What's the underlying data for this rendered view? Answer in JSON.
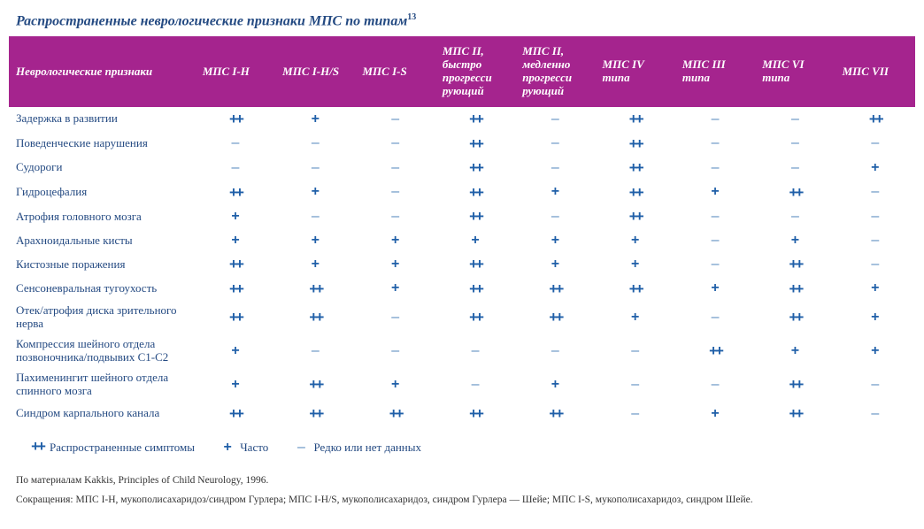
{
  "title": "Распространенные неврологические признаки МПС по типам",
  "title_sup": "13",
  "colors": {
    "header_bg": "#a5248e",
    "header_text": "#ffffff",
    "body_text": "#244a82",
    "plus_color": "#1f5fa8",
    "dash_color": "#5a8bbf",
    "footnote_color": "#333333"
  },
  "columns": [
    "Неврологические признаки",
    "МПС I-H",
    "МПС I-H/S",
    "МПС I-S",
    "МПС II, быстро прогресси рующий",
    "МПС II, медленно прогресси рующий",
    "МПС IV типа",
    "МПС III типа",
    "МПС VI типа",
    "МПС VII"
  ],
  "symbols": {
    "pp": "++",
    "p": "+",
    "d": "–"
  },
  "rows": [
    {
      "label": "Задержка в развитии",
      "cells": [
        "pp",
        "p",
        "d",
        "pp",
        "d",
        "pp",
        "d",
        "d",
        "pp"
      ]
    },
    {
      "label": "Поведенческие нарушения",
      "cells": [
        "d",
        "d",
        "d",
        "pp",
        "d",
        "pp",
        "d",
        "d",
        "d"
      ]
    },
    {
      "label": "Судороги",
      "cells": [
        "d",
        "d",
        "d",
        "pp",
        "d",
        "pp",
        "d",
        "d",
        "p"
      ]
    },
    {
      "label": "Гидроцефалия",
      "cells": [
        "pp",
        "p",
        "d",
        "pp",
        "p",
        "pp",
        "p",
        "pp",
        "d"
      ]
    },
    {
      "label": "Атрофия головного мозга",
      "cells": [
        "p",
        "d",
        "d",
        "pp",
        "d",
        "pp",
        "d",
        "d",
        "d"
      ]
    },
    {
      "label": "Арахноидальные кисты",
      "cells": [
        "p",
        "p",
        "p",
        "p",
        "p",
        "p",
        "d",
        "p",
        "d"
      ]
    },
    {
      "label": "Кистозные поражения",
      "cells": [
        "pp",
        "p",
        "p",
        "pp",
        "p",
        "p",
        "d",
        "pp",
        "d"
      ]
    },
    {
      "label": "Сенсоневральная тугоухость",
      "cells": [
        "pp",
        "pp",
        "p",
        "pp",
        "pp",
        "pp",
        "p",
        "pp",
        "p"
      ]
    },
    {
      "label": "Отек/атрофия диска зрительного нерва",
      "cells": [
        "pp",
        "pp",
        "d",
        "pp",
        "pp",
        "p",
        "d",
        "pp",
        "p"
      ]
    },
    {
      "label": "Компрессия шейного отдела позвоночника/подвывих C1-C2",
      "cells": [
        "p",
        "d",
        "d",
        "d",
        "d",
        "d",
        "pp",
        "p",
        "p"
      ]
    },
    {
      "label": "Пахименингит шейного отдела спинного мозга",
      "cells": [
        "p",
        "pp",
        "p",
        "d",
        "p",
        "d",
        "d",
        "pp",
        "d"
      ]
    },
    {
      "label": "Синдром карпального канала",
      "cells": [
        "pp",
        "pp",
        "pp",
        "pp",
        "pp",
        "d",
        "p",
        "pp",
        "d"
      ]
    }
  ],
  "legend": {
    "pp": "Распространенные симптомы",
    "p": "Часто",
    "d": "Редко или нет данных"
  },
  "footnotes": [
    "По материалам Kakkis, Principles of Child Neurology, 1996.",
    "Сокращения: МПС I-H, мукополисахаридоз/синдром Гурлера; МПС I-H/S, мукополисахаридоз, синдром Гурлера — Шейе; МПС I-S, мукополисахаридоз, синдром Шейе."
  ]
}
